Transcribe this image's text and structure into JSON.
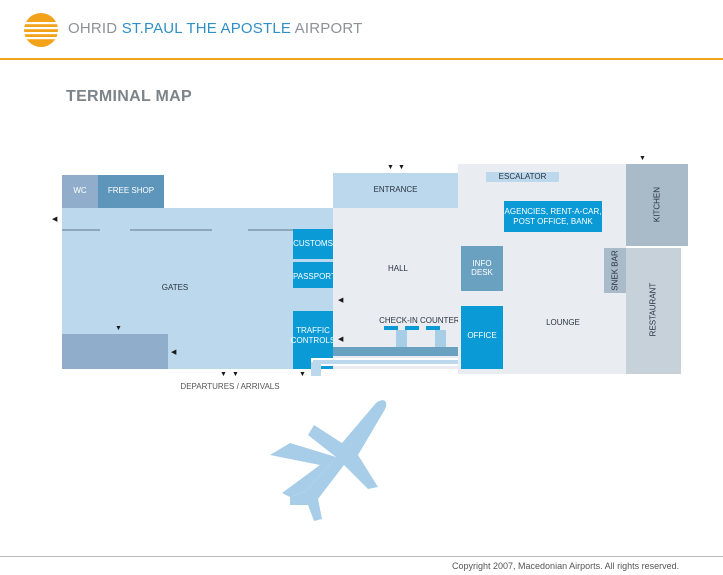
{
  "header": {
    "brand_part1": "OHRID ",
    "brand_part2": "ST.PAUL THE APOSTLE",
    "brand_part3": " AIRPORT"
  },
  "title": "TERMINAL MAP",
  "rooms": {
    "wc": "WC",
    "free_shop": "FREE SHOP",
    "entrance": "ENTRANCE",
    "escalator": "ESCALATOR",
    "kitchen": "KITCHEN",
    "agencies_line1": "AGENCIES, RENT-A-CAR,",
    "agencies_line2": "POST OFFICE, BANK",
    "customs": "CUSTOMS",
    "passport": "PASSPORT",
    "hall": "HALL",
    "info_line1": "INFO",
    "info_line2": "DESK",
    "snek_bar": "SNEK BAR",
    "gates": "GATES",
    "restaurant": "RESTAURANT",
    "checkin": "CHECK-IN COUNTERS",
    "lounge": "LOUNGE",
    "traffic_line1": "TRAFFIC",
    "traffic_line2": "CONTROLS",
    "office": "OFFICE",
    "departures": "DEPARTURES / ARRIVALS"
  },
  "footer": {
    "copyright": "Copyright 2007, Macedonian Airports. All rights reserved."
  },
  "colors": {
    "brand_orange": "#f3a21c",
    "brand_blue": "#2f8fc6",
    "room_light": "#bcd8ec",
    "room_dark_blue": "#0a9ad6",
    "room_steel": "#6aa0c0",
    "room_grey": "#a9bac8"
  }
}
